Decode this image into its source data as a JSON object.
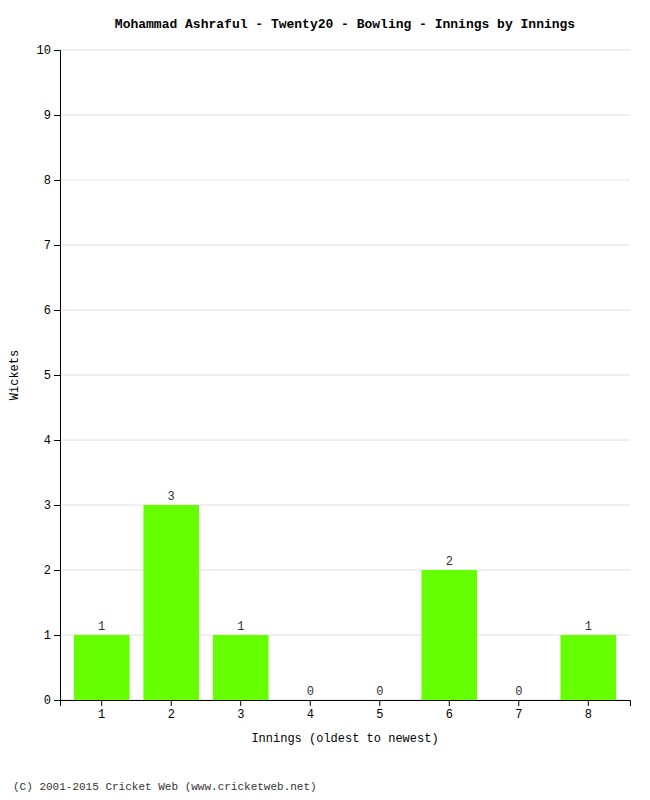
{
  "chart_data": {
    "type": "bar",
    "title": "Mohammad Ashraful - Twenty20 - Bowling - Innings by Innings",
    "xlabel": "Innings (oldest to newest)",
    "ylabel": "Wickets",
    "categories": [
      "1",
      "2",
      "3",
      "4",
      "5",
      "6",
      "7",
      "8"
    ],
    "values": [
      1,
      3,
      1,
      0,
      0,
      2,
      0,
      1
    ],
    "color": "#66ff00",
    "ylim": [
      0,
      10
    ],
    "yticks": [
      0,
      1,
      2,
      3,
      4,
      5,
      6,
      7,
      8,
      9,
      10
    ],
    "grid": true,
    "data_labels": true,
    "footer": "(C) 2001-2015 Cricket Web (www.cricketweb.net)"
  }
}
